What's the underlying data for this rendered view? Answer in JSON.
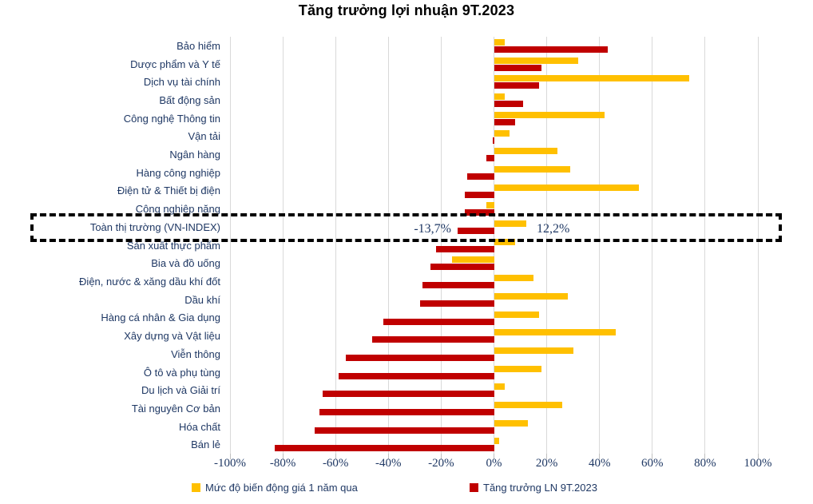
{
  "title": "Tăng trưởng lợi nhuận 9T.2023",
  "highlight": {
    "category": "Toàn thị trường (VN-INDEX)",
    "neg_label": "-13,7%",
    "pos_label": "12,2%"
  },
  "chart_data": {
    "type": "bar",
    "orientation": "horizontal",
    "title": "Tăng trưởng lợi nhuận 9T.2023",
    "xlim": [
      -100,
      100
    ],
    "grid": "vertical",
    "legend_position": "bottom",
    "x_ticks": [
      "-100%",
      "-80%",
      "-60%",
      "-40%",
      "-20%",
      "0%",
      "20%",
      "40%",
      "60%",
      "80%",
      "100%"
    ],
    "categories": [
      "Bảo hiểm",
      "Dược phẩm và Y tế",
      "Dịch vụ tài chính",
      "Bất động sản",
      "Công nghệ Thông tin",
      "Vận tải",
      "Ngân hàng",
      "Hàng công nghiệp",
      "Điện tử & Thiết bị điện",
      "Công nghiệp nặng",
      "Toàn thị trường (VN-INDEX)",
      "Sản xuất thực phẩm",
      "Bia và đồ uống",
      "Điện, nước & xăng dầu khí đốt",
      "Dầu khí",
      "Hàng cá nhân & Gia dụng",
      "Xây dựng và Vật liệu",
      "Viễn thông",
      "Ô tô và phụ tùng",
      "Du lịch và Giải trí",
      "Tài nguyên Cơ bản",
      "Hóa chất",
      "Bán lẻ"
    ],
    "series": [
      {
        "name": "Mức độ biến động giá 1 năm qua",
        "color": "#FFC000",
        "values": [
          4,
          32,
          74,
          4,
          42,
          6,
          24,
          29,
          55,
          -3,
          12.2,
          8,
          -16,
          15,
          28,
          17,
          46,
          30,
          18,
          4,
          26,
          13,
          2
        ]
      },
      {
        "name": "Tăng trưởng LN 9T.2023",
        "color": "#C00000",
        "values": [
          43,
          18,
          17,
          11,
          8,
          -0.5,
          -3,
          -10,
          -11,
          -11,
          -13.7,
          -22,
          -24,
          -27,
          -28,
          -42,
          -46,
          -56,
          -59,
          -65,
          -66,
          -68,
          -83
        ]
      }
    ],
    "annotations": [
      {
        "text": "-13,7%",
        "category": "Toàn thị trường (VN-INDEX)",
        "series": "Tăng trưởng LN 9T.2023"
      },
      {
        "text": "12,2%",
        "category": "Toàn thị trường (VN-INDEX)",
        "series": "Mức độ biến động giá 1 năm qua"
      }
    ]
  }
}
